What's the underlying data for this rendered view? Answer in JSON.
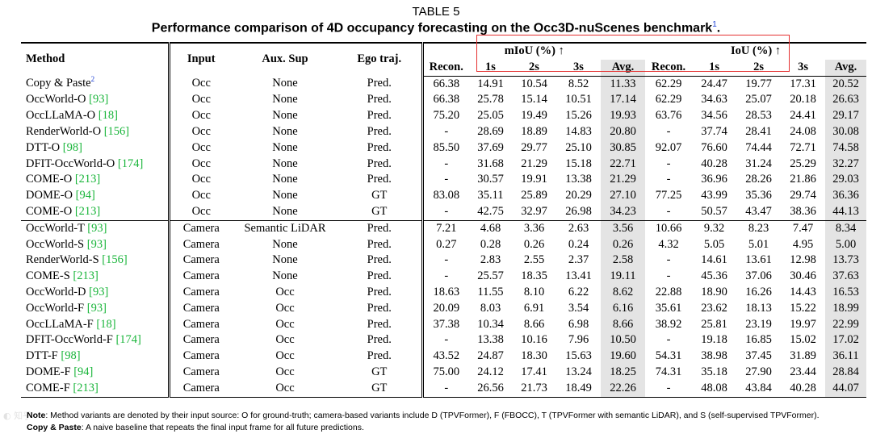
{
  "caption": {
    "label": "TABLE 5",
    "title": "Performance comparison of 4D occupancy forecasting on the Occ3D-nuScenes benchmark",
    "footnote_ref": "1"
  },
  "table": {
    "headers": {
      "method": "Method",
      "input": "Input",
      "aux_sup": "Aux. Sup",
      "ego_traj": "Ego traj.",
      "miou_group": "mIoU (%) ↑",
      "iou_group": "IoU (%) ↑",
      "sub": [
        "Recon.",
        "1s",
        "2s",
        "3s",
        "Avg.",
        "Recon.",
        "1s",
        "2s",
        "3s",
        "Avg."
      ]
    },
    "groups": [
      {
        "rows": [
          {
            "method": "Copy & Paste",
            "ref": "",
            "footnote": "2",
            "input": "Occ",
            "aux": "None",
            "ego": "Pred.",
            "vals": [
              "66.38",
              "14.91",
              "10.54",
              "8.52",
              "11.33",
              "62.29",
              "24.47",
              "19.77",
              "17.31",
              "20.52"
            ]
          },
          {
            "method": "OccWorld-O",
            "ref": "[93]",
            "footnote": "",
            "input": "Occ",
            "aux": "None",
            "ego": "Pred.",
            "vals": [
              "66.38",
              "25.78",
              "15.14",
              "10.51",
              "17.14",
              "62.29",
              "34.63",
              "25.07",
              "20.18",
              "26.63"
            ]
          },
          {
            "method": "OccLLaMA-O",
            "ref": "[18]",
            "footnote": "",
            "input": "Occ",
            "aux": "None",
            "ego": "Pred.",
            "vals": [
              "75.20",
              "25.05",
              "19.49",
              "15.26",
              "19.93",
              "63.76",
              "34.56",
              "28.53",
              "24.41",
              "29.17"
            ]
          },
          {
            "method": "RenderWorld-O",
            "ref": "[156]",
            "footnote": "",
            "input": "Occ",
            "aux": "None",
            "ego": "Pred.",
            "vals": [
              "-",
              "28.69",
              "18.89",
              "14.83",
              "20.80",
              "-",
              "37.74",
              "28.41",
              "24.08",
              "30.08"
            ]
          },
          {
            "method": "DTT-O",
            "ref": "[98]",
            "footnote": "",
            "input": "Occ",
            "aux": "None",
            "ego": "Pred.",
            "vals": [
              "85.50",
              "37.69",
              "29.77",
              "25.10",
              "30.85",
              "92.07",
              "76.60",
              "74.44",
              "72.71",
              "74.58"
            ]
          },
          {
            "method": "DFIT-OccWorld-O",
            "ref": "[174]",
            "footnote": "",
            "input": "Occ",
            "aux": "None",
            "ego": "Pred.",
            "vals": [
              "-",
              "31.68",
              "21.29",
              "15.18",
              "22.71",
              "-",
              "40.28",
              "31.24",
              "25.29",
              "32.27"
            ]
          },
          {
            "method": "COME-O",
            "ref": "[213]",
            "footnote": "",
            "input": "Occ",
            "aux": "None",
            "ego": "Pred.",
            "vals": [
              "-",
              "30.57",
              "19.91",
              "13.38",
              "21.29",
              "-",
              "36.96",
              "28.26",
              "21.86",
              "29.03"
            ]
          },
          {
            "method": "DOME-O",
            "ref": "[94]",
            "footnote": "",
            "input": "Occ",
            "aux": "None",
            "ego": "GT",
            "vals": [
              "83.08",
              "35.11",
              "25.89",
              "20.29",
              "27.10",
              "77.25",
              "43.99",
              "35.36",
              "29.74",
              "36.36"
            ]
          },
          {
            "method": "COME-O",
            "ref": "[213]",
            "footnote": "",
            "input": "Occ",
            "aux": "None",
            "ego": "GT",
            "vals": [
              "-",
              "42.75",
              "32.97",
              "26.98",
              "34.23",
              "-",
              "50.57",
              "43.47",
              "38.36",
              "44.13"
            ]
          }
        ]
      },
      {
        "rows": [
          {
            "method": "OccWorld-T",
            "ref": "[93]",
            "footnote": "",
            "input": "Camera",
            "aux": "Semantic LiDAR",
            "ego": "Pred.",
            "vals": [
              "7.21",
              "4.68",
              "3.36",
              "2.63",
              "3.56",
              "10.66",
              "9.32",
              "8.23",
              "7.47",
              "8.34"
            ]
          },
          {
            "method": "OccWorld-S",
            "ref": "[93]",
            "footnote": "",
            "input": "Camera",
            "aux": "None",
            "ego": "Pred.",
            "vals": [
              "0.27",
              "0.28",
              "0.26",
              "0.24",
              "0.26",
              "4.32",
              "5.05",
              "5.01",
              "4.95",
              "5.00"
            ]
          },
          {
            "method": "RenderWorld-S",
            "ref": "[156]",
            "footnote": "",
            "input": "Camera",
            "aux": "None",
            "ego": "Pred.",
            "vals": [
              "-",
              "2.83",
              "2.55",
              "2.37",
              "2.58",
              "-",
              "14.61",
              "13.61",
              "12.98",
              "13.73"
            ]
          },
          {
            "method": "COME-S",
            "ref": "[213]",
            "footnote": "",
            "input": "Camera",
            "aux": "None",
            "ego": "Pred.",
            "vals": [
              "-",
              "25.57",
              "18.35",
              "13.41",
              "19.11",
              "-",
              "45.36",
              "37.06",
              "30.46",
              "37.63"
            ]
          },
          {
            "method": "OccWorld-D",
            "ref": "[93]",
            "footnote": "",
            "input": "Camera",
            "aux": "Occ",
            "ego": "Pred.",
            "vals": [
              "18.63",
              "11.55",
              "8.10",
              "6.22",
              "8.62",
              "22.88",
              "18.90",
              "16.26",
              "14.43",
              "16.53"
            ]
          },
          {
            "method": "OccWorld-F",
            "ref": "[93]",
            "footnote": "",
            "input": "Camera",
            "aux": "Occ",
            "ego": "Pred.",
            "vals": [
              "20.09",
              "8.03",
              "6.91",
              "3.54",
              "6.16",
              "35.61",
              "23.62",
              "18.13",
              "15.22",
              "18.99"
            ]
          },
          {
            "method": "OccLLaMA-F",
            "ref": "[18]",
            "footnote": "",
            "input": "Camera",
            "aux": "Occ",
            "ego": "Pred.",
            "vals": [
              "37.38",
              "10.34",
              "8.66",
              "6.98",
              "8.66",
              "38.92",
              "25.81",
              "23.19",
              "19.97",
              "22.99"
            ]
          },
          {
            "method": "DFIT-OccWorld-F",
            "ref": "[174]",
            "footnote": "",
            "input": "Camera",
            "aux": "Occ",
            "ego": "Pred.",
            "vals": [
              "-",
              "13.38",
              "10.16",
              "7.96",
              "10.50",
              "-",
              "19.18",
              "16.85",
              "15.02",
              "17.02"
            ]
          },
          {
            "method": "DTT-F",
            "ref": "[98]",
            "footnote": "",
            "input": "Camera",
            "aux": "Occ",
            "ego": "Pred.",
            "vals": [
              "43.52",
              "24.87",
              "18.30",
              "15.63",
              "19.60",
              "54.31",
              "38.98",
              "37.45",
              "31.89",
              "36.11"
            ]
          },
          {
            "method": "DOME-F",
            "ref": "[94]",
            "footnote": "",
            "input": "Camera",
            "aux": "Occ",
            "ego": "GT",
            "vals": [
              "75.00",
              "24.12",
              "17.41",
              "13.24",
              "18.25",
              "74.31",
              "35.18",
              "27.90",
              "23.44",
              "28.84"
            ]
          },
          {
            "method": "COME-F",
            "ref": "[213]",
            "footnote": "",
            "input": "Camera",
            "aux": "Occ",
            "ego": "GT",
            "vals": [
              "-",
              "26.56",
              "21.73",
              "18.49",
              "22.26",
              "-",
              "48.08",
              "43.84",
              "40.28",
              "44.07"
            ]
          }
        ]
      }
    ]
  },
  "notes": {
    "note_label": "Note",
    "note_text": ": Method variants are denoted by their input source: O for ground-truth; camera-based variants include D (TPVFormer), F (FBOCC), T (TPVFormer with semantic LiDAR), and S (self-supervised TPVFormer).",
    "cp_label": "Copy & Paste",
    "cp_text": ": A naive baseline that repeats the final input frame for all future predictions."
  },
  "colors": {
    "citation": "#19b53a",
    "footnote_link": "#1a3fd6",
    "highlight_box": "#e53030",
    "avg_column_bg": "#e4e4e4"
  }
}
